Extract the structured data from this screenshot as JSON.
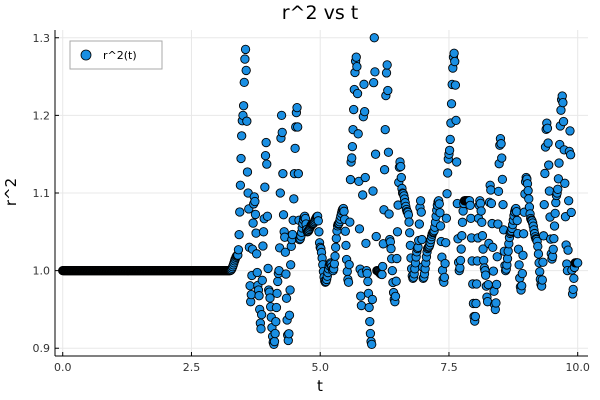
{
  "chart_data": {
    "type": "scatter",
    "title": "r^2 vs t",
    "xlabel": "t",
    "ylabel": "r^2",
    "xlim": [
      -0.15,
      10.2
    ],
    "ylim": [
      0.89,
      1.31
    ],
    "xticks": [
      {
        "value": 0,
        "label": "0.0"
      },
      {
        "value": 2.5,
        "label": "2.5"
      },
      {
        "value": 5,
        "label": "5.0"
      },
      {
        "value": 7.5,
        "label": "7.5"
      },
      {
        "value": 10,
        "label": "10.0"
      }
    ],
    "yticks": [
      {
        "value": 0.9,
        "label": "0.9"
      },
      {
        "value": 1.0,
        "label": "1.0"
      },
      {
        "value": 1.1,
        "label": "1.1"
      },
      {
        "value": 1.2,
        "label": "1.2"
      },
      {
        "value": 1.3,
        "label": "1.3"
      }
    ],
    "grid": true,
    "legend_position": "top-left",
    "colors": {
      "marker_fill": "#1a8fe3",
      "marker_edge": "#000000",
      "grid": "#e8e8e8",
      "axis": "#000000"
    },
    "series": [
      {
        "name": "r^2(t)",
        "x": [
          0.0,
          0.5,
          1.0,
          1.5,
          2.0,
          2.5,
          3.0,
          3.25,
          3.4,
          3.5,
          3.55,
          3.6,
          3.65,
          3.72,
          3.8,
          3.85,
          3.9,
          3.95,
          4.0,
          4.1,
          4.2,
          4.25,
          4.3,
          4.38,
          4.45,
          4.55,
          4.6,
          4.7,
          4.75,
          4.85,
          4.95,
          5.0,
          5.1,
          5.2,
          5.25,
          5.35,
          5.45,
          5.55,
          5.6,
          5.7,
          5.8,
          5.85,
          5.9,
          6.0,
          6.05,
          6.1,
          6.2,
          6.3,
          6.35,
          6.45,
          6.55,
          6.6,
          6.7,
          6.8,
          6.9,
          6.95,
          7.0,
          7.1,
          7.2,
          7.3,
          7.4,
          7.5,
          7.6,
          7.7,
          7.8,
          7.9,
          8.0,
          8.1,
          8.2,
          8.25,
          8.3,
          8.4,
          8.5,
          8.6,
          8.7,
          8.8,
          8.9,
          9.0,
          9.1,
          9.2,
          9.3,
          9.4,
          9.5,
          9.6,
          9.7,
          9.8,
          9.85,
          9.9,
          9.95,
          10.0
        ],
        "y": [
          1.0,
          1.0,
          1.0,
          1.0,
          1.0,
          1.0,
          1.0,
          1.0,
          1.02,
          1.2,
          1.285,
          1.1,
          0.96,
          1.095,
          0.975,
          0.925,
          1.05,
          1.165,
          0.975,
          0.905,
          1.0,
          1.2,
          1.05,
          0.91,
          1.04,
          1.21,
          1.04,
          1.07,
          1.05,
          1.06,
          1.07,
          1.03,
          0.985,
          1.01,
          1.0,
          1.06,
          1.08,
          0.985,
          1.14,
          1.275,
          0.955,
          1.24,
          1.0,
          0.905,
          1.3,
          1.0,
          0.995,
          1.265,
          1.04,
          0.96,
          1.14,
          1.1,
          1.075,
          0.99,
          1.03,
          1.09,
          0.99,
          1.03,
          1.05,
          1.09,
          0.985,
          1.15,
          1.28,
          1.0,
          1.09,
          1.09,
          0.935,
          1.09,
          1.0,
          0.96,
          1.11,
          0.95,
          1.17,
          1.0,
          1.05,
          1.08,
          0.975,
          1.12,
          1.065,
          1.04,
          0.98,
          1.19,
          1.015,
          1.1,
          1.225,
          1.0,
          1.18,
          0.97,
          1.01,
          1.01
        ]
      }
    ]
  }
}
